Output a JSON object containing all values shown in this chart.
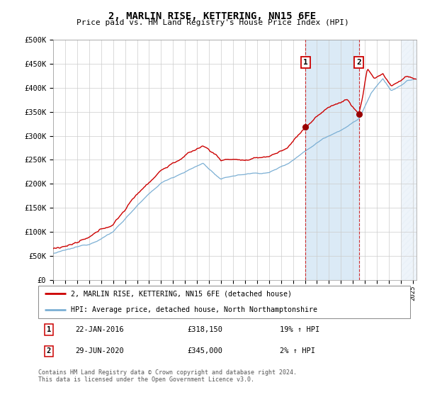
{
  "title": "2, MARLIN RISE, KETTERING, NN15 6FE",
  "subtitle": "Price paid vs. HM Land Registry's House Price Index (HPI)",
  "ylim": [
    0,
    500000
  ],
  "yticks": [
    0,
    50000,
    100000,
    150000,
    200000,
    250000,
    300000,
    350000,
    400000,
    450000,
    500000
  ],
  "ytick_labels": [
    "£0",
    "£50K",
    "£100K",
    "£150K",
    "£200K",
    "£250K",
    "£300K",
    "£350K",
    "£400K",
    "£450K",
    "£500K"
  ],
  "xlim_start": 1995.0,
  "xlim_end": 2025.3,
  "grid_color": "#cccccc",
  "red_line_color": "#cc0000",
  "blue_line_color": "#7bafd4",
  "marker1_x": 2016.056,
  "marker1_y": 318150,
  "marker2_x": 2020.493,
  "marker2_y": 345000,
  "marker1_date": "22-JAN-2016",
  "marker1_price": "£318,150",
  "marker1_hpi": "19% ↑ HPI",
  "marker2_date": "29-JUN-2020",
  "marker2_price": "£345,000",
  "marker2_hpi": "2% ↑ HPI",
  "legend_line1": "2, MARLIN RISE, KETTERING, NN15 6FE (detached house)",
  "legend_line2": "HPI: Average price, detached house, North Northamptonshire",
  "footer": "Contains HM Land Registry data © Crown copyright and database right 2024.\nThis data is licensed under the Open Government Licence v3.0.",
  "hatch_start": 2024.0,
  "shade_between_markers": true
}
